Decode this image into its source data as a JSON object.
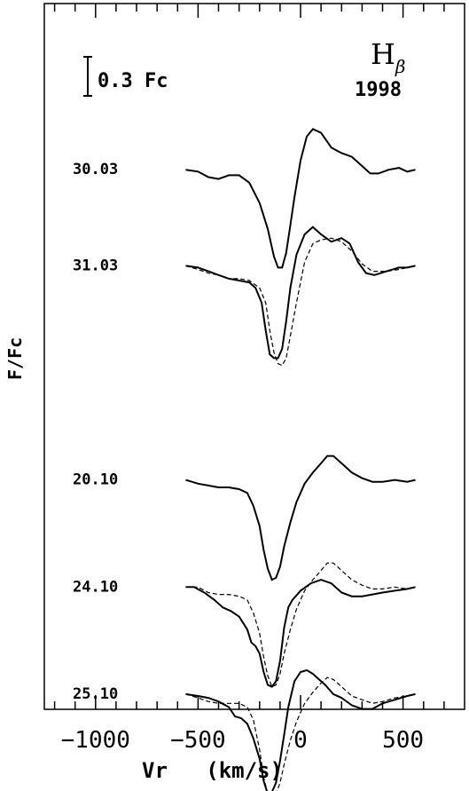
{
  "chart_data": {
    "type": "line",
    "title": "H",
    "title_subscript": "β",
    "subtitle": "1998",
    "scale_bar_label": "0.3 Fc",
    "xlabel": "Vr   (km/s)",
    "ylabel": "F/Fc",
    "xlim": [
      -1250,
      800
    ],
    "x_ticks": [
      -1000,
      -500,
      0,
      500
    ],
    "x_tick_labels": [
      "−1000",
      "−500",
      "0",
      "500"
    ],
    "grid": false,
    "series": [
      {
        "name": "30.03",
        "style": "solid",
        "offset": 4.4,
        "points": [
          [
            -560,
            1.0
          ],
          [
            -500,
            0.99
          ],
          [
            -450,
            0.96
          ],
          [
            -400,
            0.95
          ],
          [
            -350,
            0.97
          ],
          [
            -300,
            0.97
          ],
          [
            -250,
            0.93
          ],
          [
            -200,
            0.82
          ],
          [
            -160,
            0.68
          ],
          [
            -130,
            0.53
          ],
          [
            -110,
            0.47
          ],
          [
            -90,
            0.47
          ],
          [
            -70,
            0.55
          ],
          [
            -50,
            0.7
          ],
          [
            -30,
            0.85
          ],
          [
            0,
            1.05
          ],
          [
            30,
            1.18
          ],
          [
            60,
            1.22
          ],
          [
            100,
            1.2
          ],
          [
            150,
            1.12
          ],
          [
            200,
            1.09
          ],
          [
            250,
            1.07
          ],
          [
            300,
            1.02
          ],
          [
            340,
            0.98
          ],
          [
            380,
            0.98
          ],
          [
            430,
            1.0
          ],
          [
            480,
            1.01
          ],
          [
            520,
            0.99
          ],
          [
            560,
            1.0
          ]
        ]
      },
      {
        "name": "31.03",
        "style": "solid",
        "offset": 3.88,
        "points": [
          [
            -560,
            1.0
          ],
          [
            -500,
            0.99
          ],
          [
            -450,
            0.97
          ],
          [
            -400,
            0.95
          ],
          [
            -350,
            0.93
          ],
          [
            -300,
            0.92
          ],
          [
            -250,
            0.91
          ],
          [
            -220,
            0.88
          ],
          [
            -190,
            0.8
          ],
          [
            -170,
            0.65
          ],
          [
            -150,
            0.52
          ],
          [
            -130,
            0.5
          ],
          [
            -110,
            0.5
          ],
          [
            -90,
            0.55
          ],
          [
            -70,
            0.7
          ],
          [
            -50,
            0.88
          ],
          [
            -20,
            1.06
          ],
          [
            20,
            1.17
          ],
          [
            60,
            1.21
          ],
          [
            100,
            1.17
          ],
          [
            150,
            1.13
          ],
          [
            200,
            1.15
          ],
          [
            240,
            1.12
          ],
          [
            280,
            1.02
          ],
          [
            320,
            0.96
          ],
          [
            360,
            0.95
          ],
          [
            420,
            0.97
          ],
          [
            480,
            0.99
          ],
          [
            520,
            0.99
          ],
          [
            560,
            1.0
          ]
        ]
      },
      {
        "name": "31.03 (profile)",
        "style": "dashed",
        "offset": 3.88,
        "points": [
          [
            -560,
            1.0
          ],
          [
            -500,
            0.98
          ],
          [
            -450,
            0.96
          ],
          [
            -400,
            0.95
          ],
          [
            -350,
            0.93
          ],
          [
            -300,
            0.93
          ],
          [
            -250,
            0.92
          ],
          [
            -200,
            0.88
          ],
          [
            -170,
            0.8
          ],
          [
            -150,
            0.65
          ],
          [
            -130,
            0.53
          ],
          [
            -110,
            0.47
          ],
          [
            -90,
            0.46
          ],
          [
            -70,
            0.5
          ],
          [
            -50,
            0.62
          ],
          [
            -20,
            0.8
          ],
          [
            20,
            1.02
          ],
          [
            60,
            1.12
          ],
          [
            100,
            1.14
          ],
          [
            150,
            1.15
          ],
          [
            200,
            1.13
          ],
          [
            250,
            1.08
          ],
          [
            300,
            1.01
          ],
          [
            350,
            0.97
          ],
          [
            420,
            0.97
          ],
          [
            480,
            0.98
          ],
          [
            560,
            1.0
          ]
        ]
      },
      {
        "name": "20.10",
        "style": "solid",
        "offset": 2.72,
        "points": [
          [
            -560,
            1.0
          ],
          [
            -500,
            0.98
          ],
          [
            -450,
            0.97
          ],
          [
            -400,
            0.96
          ],
          [
            -350,
            0.96
          ],
          [
            -300,
            0.95
          ],
          [
            -260,
            0.93
          ],
          [
            -230,
            0.86
          ],
          [
            -200,
            0.75
          ],
          [
            -180,
            0.62
          ],
          [
            -160,
            0.52
          ],
          [
            -140,
            0.46
          ],
          [
            -120,
            0.47
          ],
          [
            -100,
            0.53
          ],
          [
            -80,
            0.64
          ],
          [
            -50,
            0.77
          ],
          [
            -20,
            0.88
          ],
          [
            20,
            0.98
          ],
          [
            60,
            1.04
          ],
          [
            100,
            1.09
          ],
          [
            130,
            1.13
          ],
          [
            160,
            1.13
          ],
          [
            200,
            1.09
          ],
          [
            250,
            1.04
          ],
          [
            300,
            1.01
          ],
          [
            350,
            0.99
          ],
          [
            400,
            0.99
          ],
          [
            460,
            1.0
          ],
          [
            520,
            0.99
          ],
          [
            560,
            1.0
          ]
        ]
      },
      {
        "name": "24.10",
        "style": "solid",
        "offset": 2.14,
        "points": [
          [
            -560,
            1.0
          ],
          [
            -520,
            1.0
          ],
          [
            -470,
            0.97
          ],
          [
            -420,
            0.93
          ],
          [
            -380,
            0.89
          ],
          [
            -340,
            0.87
          ],
          [
            -300,
            0.84
          ],
          [
            -260,
            0.77
          ],
          [
            -240,
            0.7
          ],
          [
            -220,
            0.68
          ],
          [
            -200,
            0.64
          ],
          [
            -180,
            0.54
          ],
          [
            -160,
            0.47
          ],
          [
            -140,
            0.46
          ],
          [
            -120,
            0.49
          ],
          [
            -100,
            0.6
          ],
          [
            -80,
            0.78
          ],
          [
            -60,
            0.89
          ],
          [
            -40,
            0.93
          ],
          [
            0,
            0.98
          ],
          [
            50,
            1.02
          ],
          [
            100,
            1.04
          ],
          [
            150,
            1.02
          ],
          [
            200,
            0.97
          ],
          [
            250,
            0.95
          ],
          [
            300,
            0.95
          ],
          [
            350,
            0.96
          ],
          [
            400,
            0.97
          ],
          [
            460,
            0.98
          ],
          [
            520,
            0.99
          ],
          [
            560,
            1.0
          ]
        ]
      },
      {
        "name": "24.10 (profile)",
        "style": "dashed",
        "offset": 2.14,
        "points": [
          [
            -560,
            1.0
          ],
          [
            -500,
            1.0
          ],
          [
            -450,
            0.97
          ],
          [
            -400,
            0.96
          ],
          [
            -350,
            0.96
          ],
          [
            -300,
            0.95
          ],
          [
            -260,
            0.93
          ],
          [
            -230,
            0.86
          ],
          [
            -200,
            0.75
          ],
          [
            -180,
            0.62
          ],
          [
            -160,
            0.52
          ],
          [
            -140,
            0.46
          ],
          [
            -120,
            0.47
          ],
          [
            -100,
            0.53
          ],
          [
            -80,
            0.64
          ],
          [
            -50,
            0.77
          ],
          [
            -20,
            0.88
          ],
          [
            20,
            0.98
          ],
          [
            60,
            1.04
          ],
          [
            100,
            1.09
          ],
          [
            130,
            1.13
          ],
          [
            160,
            1.13
          ],
          [
            200,
            1.09
          ],
          [
            250,
            1.04
          ],
          [
            300,
            1.01
          ],
          [
            350,
            0.99
          ],
          [
            400,
            0.99
          ],
          [
            460,
            1.0
          ],
          [
            520,
            0.99
          ],
          [
            560,
            1.0
          ]
        ]
      },
      {
        "name": "25.10",
        "style": "solid",
        "offset": 1.56,
        "points": [
          [
            -560,
            1.0
          ],
          [
            -500,
            0.99
          ],
          [
            -450,
            0.98
          ],
          [
            -400,
            0.96
          ],
          [
            -350,
            0.93
          ],
          [
            -320,
            0.88
          ],
          [
            -290,
            0.87
          ],
          [
            -260,
            0.84
          ],
          [
            -230,
            0.76
          ],
          [
            -200,
            0.65
          ],
          [
            -180,
            0.53
          ],
          [
            -160,
            0.46
          ],
          [
            -140,
            0.47
          ],
          [
            -120,
            0.52
          ],
          [
            -100,
            0.64
          ],
          [
            -80,
            0.78
          ],
          [
            -60,
            0.93
          ],
          [
            -30,
            1.07
          ],
          [
            0,
            1.12
          ],
          [
            30,
            1.13
          ],
          [
            60,
            1.11
          ],
          [
            90,
            1.08
          ],
          [
            120,
            1.05
          ],
          [
            160,
            1.0
          ],
          [
            200,
            0.98
          ],
          [
            250,
            0.94
          ],
          [
            300,
            0.92
          ],
          [
            350,
            0.92
          ],
          [
            400,
            0.95
          ],
          [
            460,
            0.97
          ],
          [
            520,
            0.99
          ],
          [
            560,
            1.0
          ]
        ]
      },
      {
        "name": "25.10 (profile)",
        "style": "dashed",
        "offset": 1.56,
        "points": [
          [
            -560,
            1.0
          ],
          [
            -500,
            0.98
          ],
          [
            -450,
            0.96
          ],
          [
            -400,
            0.95
          ],
          [
            -350,
            0.95
          ],
          [
            -300,
            0.95
          ],
          [
            -260,
            0.93
          ],
          [
            -230,
            0.86
          ],
          [
            -200,
            0.7
          ],
          [
            -180,
            0.55
          ],
          [
            -160,
            0.46
          ],
          [
            -140,
            0.44
          ],
          [
            -120,
            0.46
          ],
          [
            -100,
            0.52
          ],
          [
            -80,
            0.62
          ],
          [
            -50,
            0.75
          ],
          [
            -20,
            0.85
          ],
          [
            20,
            0.95
          ],
          [
            60,
            1.01
          ],
          [
            100,
            1.06
          ],
          [
            130,
            1.09
          ],
          [
            160,
            1.08
          ],
          [
            200,
            1.04
          ],
          [
            250,
            0.99
          ],
          [
            300,
            0.97
          ],
          [
            350,
            0.95
          ],
          [
            400,
            0.96
          ],
          [
            460,
            0.98
          ],
          [
            520,
            0.99
          ],
          [
            560,
            1.0
          ]
        ]
      }
    ],
    "row_labels": [
      "30.03",
      "31.03",
      "20.10",
      "24.10",
      "25.10"
    ]
  }
}
